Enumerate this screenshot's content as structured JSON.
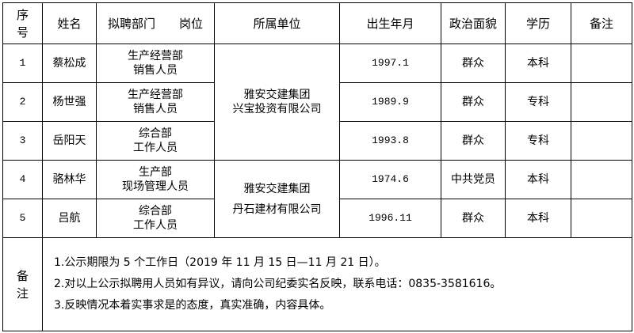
{
  "headers": {
    "seq": [
      "序",
      "号"
    ],
    "name": "姓名",
    "dept_post": "拟聘部门　　岗位",
    "unit": "所属单位",
    "birth": "出生年月",
    "political": "政治面貌",
    "education": "学历",
    "remarks": "备注"
  },
  "rows": [
    {
      "seq": "1",
      "name": "蔡松成",
      "dept": "生产经营部",
      "post": "销售人员",
      "birth": "1997.1",
      "political": "群众",
      "education": "本科"
    },
    {
      "seq": "2",
      "name": "杨世强",
      "dept": "生产经营部",
      "post": "销售人员",
      "birth": "1989.9",
      "political": "群众",
      "education": "专科"
    },
    {
      "seq": "3",
      "name": "岳阳天",
      "dept": "综合部",
      "post": "工作人员",
      "birth": "1993.8",
      "political": "群众",
      "education": "专科"
    },
    {
      "seq": "4",
      "name": "骆林华",
      "dept": "生产部",
      "post": "现场管理人员",
      "birth": "1974.6",
      "political": "中共党员",
      "education": "本科"
    },
    {
      "seq": "5",
      "name": "吕航",
      "dept": "综合部",
      "post": "工作人员",
      "birth": "1996.11",
      "political": "群众",
      "education": "本科"
    }
  ],
  "units": [
    {
      "line1": "雅安交建集团",
      "line2": "兴宝投资有限公司"
    },
    {
      "line1": "雅安交建集团",
      "line2": "丹石建材有限公司"
    }
  ],
  "notes": {
    "label": [
      "备",
      "注"
    ],
    "lines": [
      "1.公示期限为 5 个工作日（2019 年 11 月 15 日—11 月 21 日）。",
      "2.对以上公示拟聘用人员如有异议，请向公司纪委实名反映，联系电话：0835-3581616。",
      "3.反映情况本着实事求是的态度，真实准确，内容具体。"
    ]
  }
}
